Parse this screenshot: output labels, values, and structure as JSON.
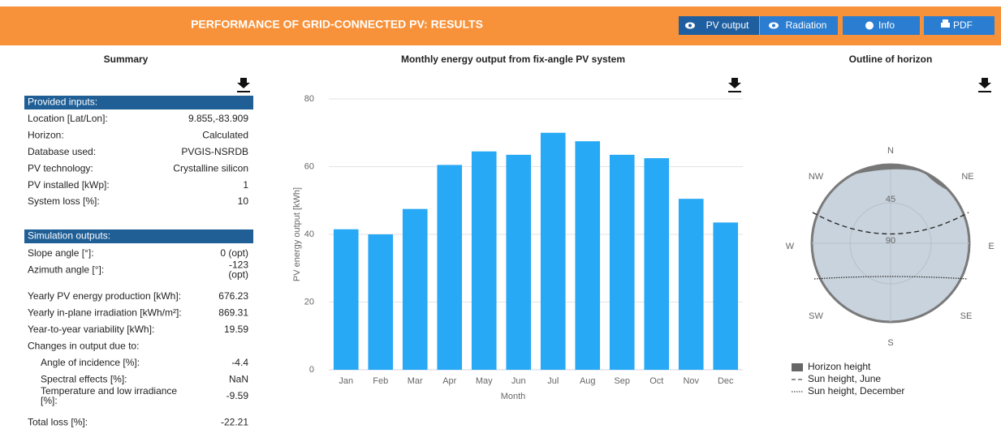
{
  "header": {
    "title": "PERFORMANCE OF GRID-CONNECTED PV: RESULTS",
    "buttons": [
      "PV output",
      "Radiation",
      "Info",
      "PDF"
    ]
  },
  "summary": {
    "title": "Summary",
    "inputs": {
      "heading": "Provided inputs:",
      "rows": [
        {
          "label": "Location [Lat/Lon]:",
          "value": "9.855,-83.909"
        },
        {
          "label": "Horizon:",
          "value": "Calculated"
        },
        {
          "label": "Database used:",
          "value": "PVGIS-NSRDB"
        },
        {
          "label": "PV technology:",
          "value": "Crystalline silicon"
        },
        {
          "label": "PV installed [kWp]:",
          "value": 1
        },
        {
          "label": "System loss [%]:",
          "value": 10
        }
      ]
    },
    "outputs": {
      "heading": "Simulation outputs:",
      "rows": [
        {
          "label": "Slope angle [°]:",
          "value": "0 (opt)"
        },
        {
          "label": "Azimuth angle [°]:",
          "value": [
            "-123",
            "(opt)"
          ]
        },
        {
          "label": "Yearly PV energy production [kWh]:",
          "value": 676.23
        },
        {
          "label": "Yearly in-plane irradiation [kWh/m²]:",
          "value": 869.31
        },
        {
          "label": "Year-to-year variability [kWh]:",
          "value": 19.59
        },
        {
          "label": "Changes in output due to:",
          "items": [
            {
              "label": "Angle of incidence [%]:",
              "value": -4.4
            },
            {
              "label": "Spectral effects [%]:",
              "value": "NaN"
            },
            {
              "label": [
                "Temperature and low irradiance",
                "[%]:"
              ],
              "value": -9.59
            }
          ]
        },
        {
          "label": "Total loss [%]:",
          "value": -22.21
        }
      ]
    }
  },
  "chart_data": {
    "type": "bar",
    "title": "Monthly energy output from fix-angle PV system",
    "y_label": "PV energy output [kWh]",
    "x_label": "Month",
    "categories": [
      "Jan",
      "Feb",
      "Mar",
      "Apr",
      "May",
      "Jun",
      "Jul",
      "Aug",
      "Sep",
      "Oct",
      "Nov",
      "Dec"
    ],
    "values": [
      41.5,
      40,
      47.5,
      60.5,
      64.5,
      63.5,
      70,
      67.5,
      63.5,
      62.5,
      50.5,
      43.5
    ],
    "color": "#27a9f5",
    "ylim": [
      0,
      80
    ],
    "yticks": [
      0,
      20,
      40,
      60,
      80
    ],
    "grid": true
  },
  "horizon": {
    "title": "Outline of horizon",
    "compass": [
      "N",
      "NE",
      "E",
      "SE",
      "S",
      "SW",
      "W",
      "NW"
    ],
    "rings": [
      45,
      90
    ],
    "legend": [
      "Horizon height",
      "Sun height, June",
      "Sun height, December"
    ]
  }
}
